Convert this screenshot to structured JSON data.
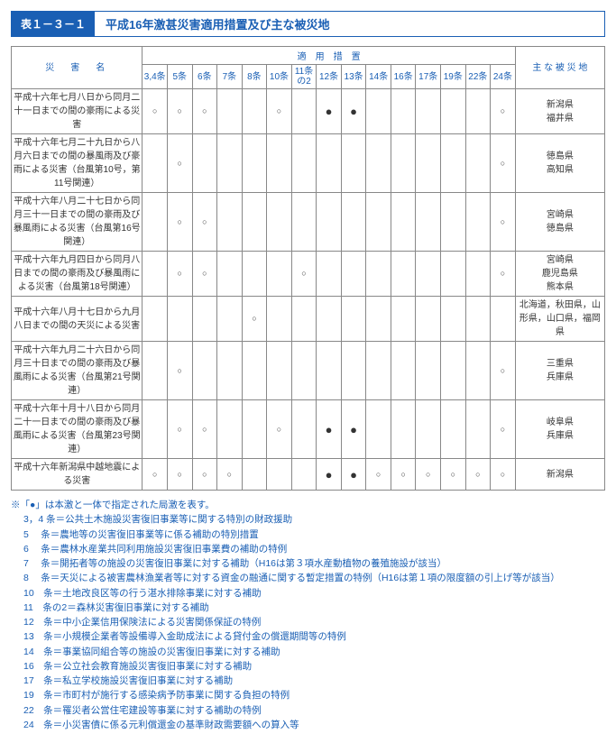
{
  "title_num": "表１－３－１",
  "title_text": "平成16年激甚災害適用措置及び主な被災地",
  "header": {
    "catName": "災　害　名",
    "measures": "適　用　措　置",
    "areas": "主 な 被 災 地",
    "cols": [
      "3,4条",
      "5条",
      "6条",
      "7条",
      "8条",
      "10条",
      "11条の2",
      "12条",
      "13条",
      "14条",
      "16条",
      "17条",
      "19条",
      "22条",
      "24条"
    ]
  },
  "rows": [
    {
      "name": "平成十六年七月八日から同月二十一日までの間の豪雨による災害",
      "marks": [
        "○",
        "○",
        "○",
        "",
        "",
        "○",
        "",
        "●",
        "●",
        "",
        "",
        "",
        "",
        "",
        "○"
      ],
      "areas": "新潟県\n福井県"
    },
    {
      "name": "平成十六年七月二十九日から八月六日までの間の暴風雨及び豪雨による災害（台風第10号，第11号関連）",
      "marks": [
        "",
        "○",
        "",
        "",
        "",
        "",
        "",
        "",
        "",
        "",
        "",
        "",
        "",
        "",
        "○"
      ],
      "areas": "徳島県\n高知県"
    },
    {
      "name": "平成十六年八月二十七日から同月三十一日までの間の豪雨及び暴風雨による災害（台風第16号関連）",
      "marks": [
        "",
        "○",
        "○",
        "",
        "",
        "",
        "",
        "",
        "",
        "",
        "",
        "",
        "",
        "",
        "○"
      ],
      "areas": "宮崎県\n徳島県"
    },
    {
      "name": "平成十六年九月四日から同月八日までの間の豪雨及び暴風雨による災害（台風第18号関連）",
      "marks": [
        "",
        "○",
        "○",
        "",
        "",
        "",
        "○",
        "",
        "",
        "",
        "",
        "",
        "",
        "",
        "○"
      ],
      "areas": "宮崎県\n鹿児島県\n熊本県"
    },
    {
      "name": "平成十六年八月十七日から九月八日までの間の天災による災害",
      "marks": [
        "",
        "",
        "",
        "",
        "○",
        "",
        "",
        "",
        "",
        "",
        "",
        "",
        "",
        "",
        ""
      ],
      "areas": "北海道，秋田県，山形県，山口県，福岡県"
    },
    {
      "name": "平成十六年九月二十六日から同月三十日までの間の豪雨及び暴風雨による災害（台風第21号関連）",
      "marks": [
        "",
        "○",
        "",
        "",
        "",
        "",
        "",
        "",
        "",
        "",
        "",
        "",
        "",
        "",
        "○"
      ],
      "areas": "三重県\n兵庫県"
    },
    {
      "name": "平成十六年十月十八日から同月二十一日までの間の豪雨及び暴風雨による災害（台風第23号関連）",
      "marks": [
        "",
        "○",
        "○",
        "",
        "",
        "○",
        "",
        "●",
        "●",
        "",
        "",
        "",
        "",
        "",
        "○"
      ],
      "areas": "岐阜県\n兵庫県"
    },
    {
      "name": "平成十六年新潟県中越地震による災害",
      "marks": [
        "○",
        "○",
        "○",
        "○",
        "",
        "",
        "",
        "●",
        "●",
        "○",
        "○",
        "○",
        "○",
        "○",
        "○"
      ],
      "areas": "新潟県"
    }
  ],
  "notes": [
    "※「●」は本激と一体で指定された局激を表す。",
    "3，4 条＝公共土木施設災害復旧事業等に関する特別の財政援助",
    "5　 条＝農地等の災害復旧事業等に係る補助の特別措置",
    "6　 条＝農林水産業共同利用施設災害復旧事業費の補助の特例",
    "7　 条＝開拓者等の施設の災害復旧事業に対する補助（H16は第３項水産動植物の養殖施設が該当）",
    "8　 条＝天災による被害農林漁業者等に対する資金の融通に関する暫定措置の特例（H16は第１項の限度額の引上げ等が該当）",
    "10　条＝土地改良区等の行う湛水排除事業に対する補助",
    "11　条の2＝森林災害復旧事業に対する補助",
    "12　条＝中小企業信用保険法による災害関係保証の特例",
    "13　条＝小規模企業者等設備導入金助成法による貸付金の償還期間等の特例",
    "14　条＝事業協同組合等の施設の災害復旧事業に対する補助",
    "16　条＝公立社会教育施設災害復旧事業に対する補助",
    "17　条＝私立学校施設災害復旧事業に対する補助",
    "19　条＝市町村が施行する感染病予防事業に関する負担の特例",
    "22　条＝罹災者公営住宅建設等事業に対する補助の特例",
    "24　条＝小災害債に係る元利償還金の基準財政需要額への算入等"
  ]
}
